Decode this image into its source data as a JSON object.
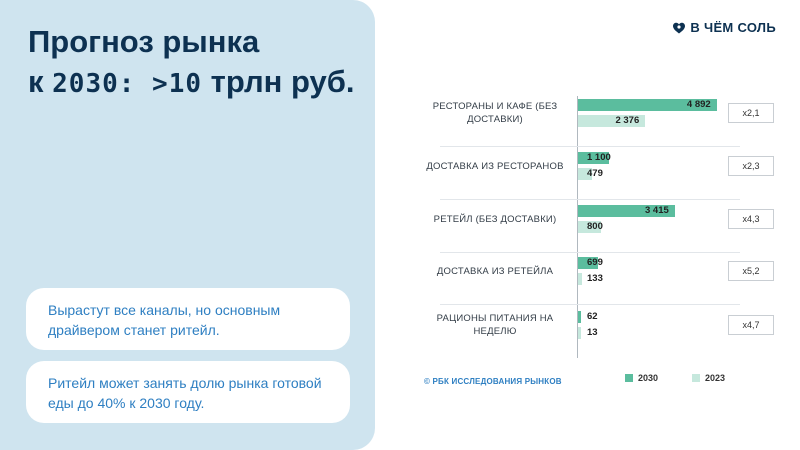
{
  "title": {
    "line1": "Прогноз рынка",
    "line2_prefix": "к ",
    "line2_mono": "2030: >10",
    "line2_suffix": " трлн руб."
  },
  "cards": [
    {
      "text": "Вырастут все каналы, но основным драйвером станет ритейл."
    },
    {
      "text": "Ритейл может занять долю рынка готовой еды до 40% к 2030 году."
    }
  ],
  "brand": {
    "text": "В ЧЁМ СОЛЬ",
    "icon": "salt-heart-icon"
  },
  "colors": {
    "s2030": "#5bbd9e",
    "s2023": "#c6e8dd",
    "title": "#0d3151",
    "card_text": "#2e7fc2"
  },
  "chart_data": {
    "type": "bar",
    "orientation": "horizontal",
    "categories": [
      "РЕСТОРАНЫ И КАФЕ (БЕЗ ДОСТАВКИ)",
      "ДОСТАВКА ИЗ РЕСТОРАНОВ",
      "РЕТЕЙЛ (БЕЗ ДОСТАВКИ)",
      "ДОСТАВКА ИЗ РЕТЕЙЛА",
      "РАЦИОНЫ ПИТАНИЯ НА НЕДЕЛЮ"
    ],
    "series": [
      {
        "name": "2030",
        "values": [
          4892,
          1100,
          3415,
          699,
          62
        ],
        "labels": [
          "4 892",
          "1 100",
          "3 415",
          "699",
          "62"
        ]
      },
      {
        "name": "2023",
        "values": [
          2376,
          479,
          800,
          133,
          13
        ],
        "labels": [
          "2 376",
          "479",
          "800",
          "133",
          "13"
        ]
      }
    ],
    "multipliers": [
      "х2,1",
      "х2,3",
      "х4,3",
      "х5,2",
      "х4,7"
    ],
    "xlim": [
      0,
      5000
    ],
    "legend_position": "bottom",
    "source": "© РБК ИССЛЕДОВАНИЯ РЫНКОВ"
  }
}
